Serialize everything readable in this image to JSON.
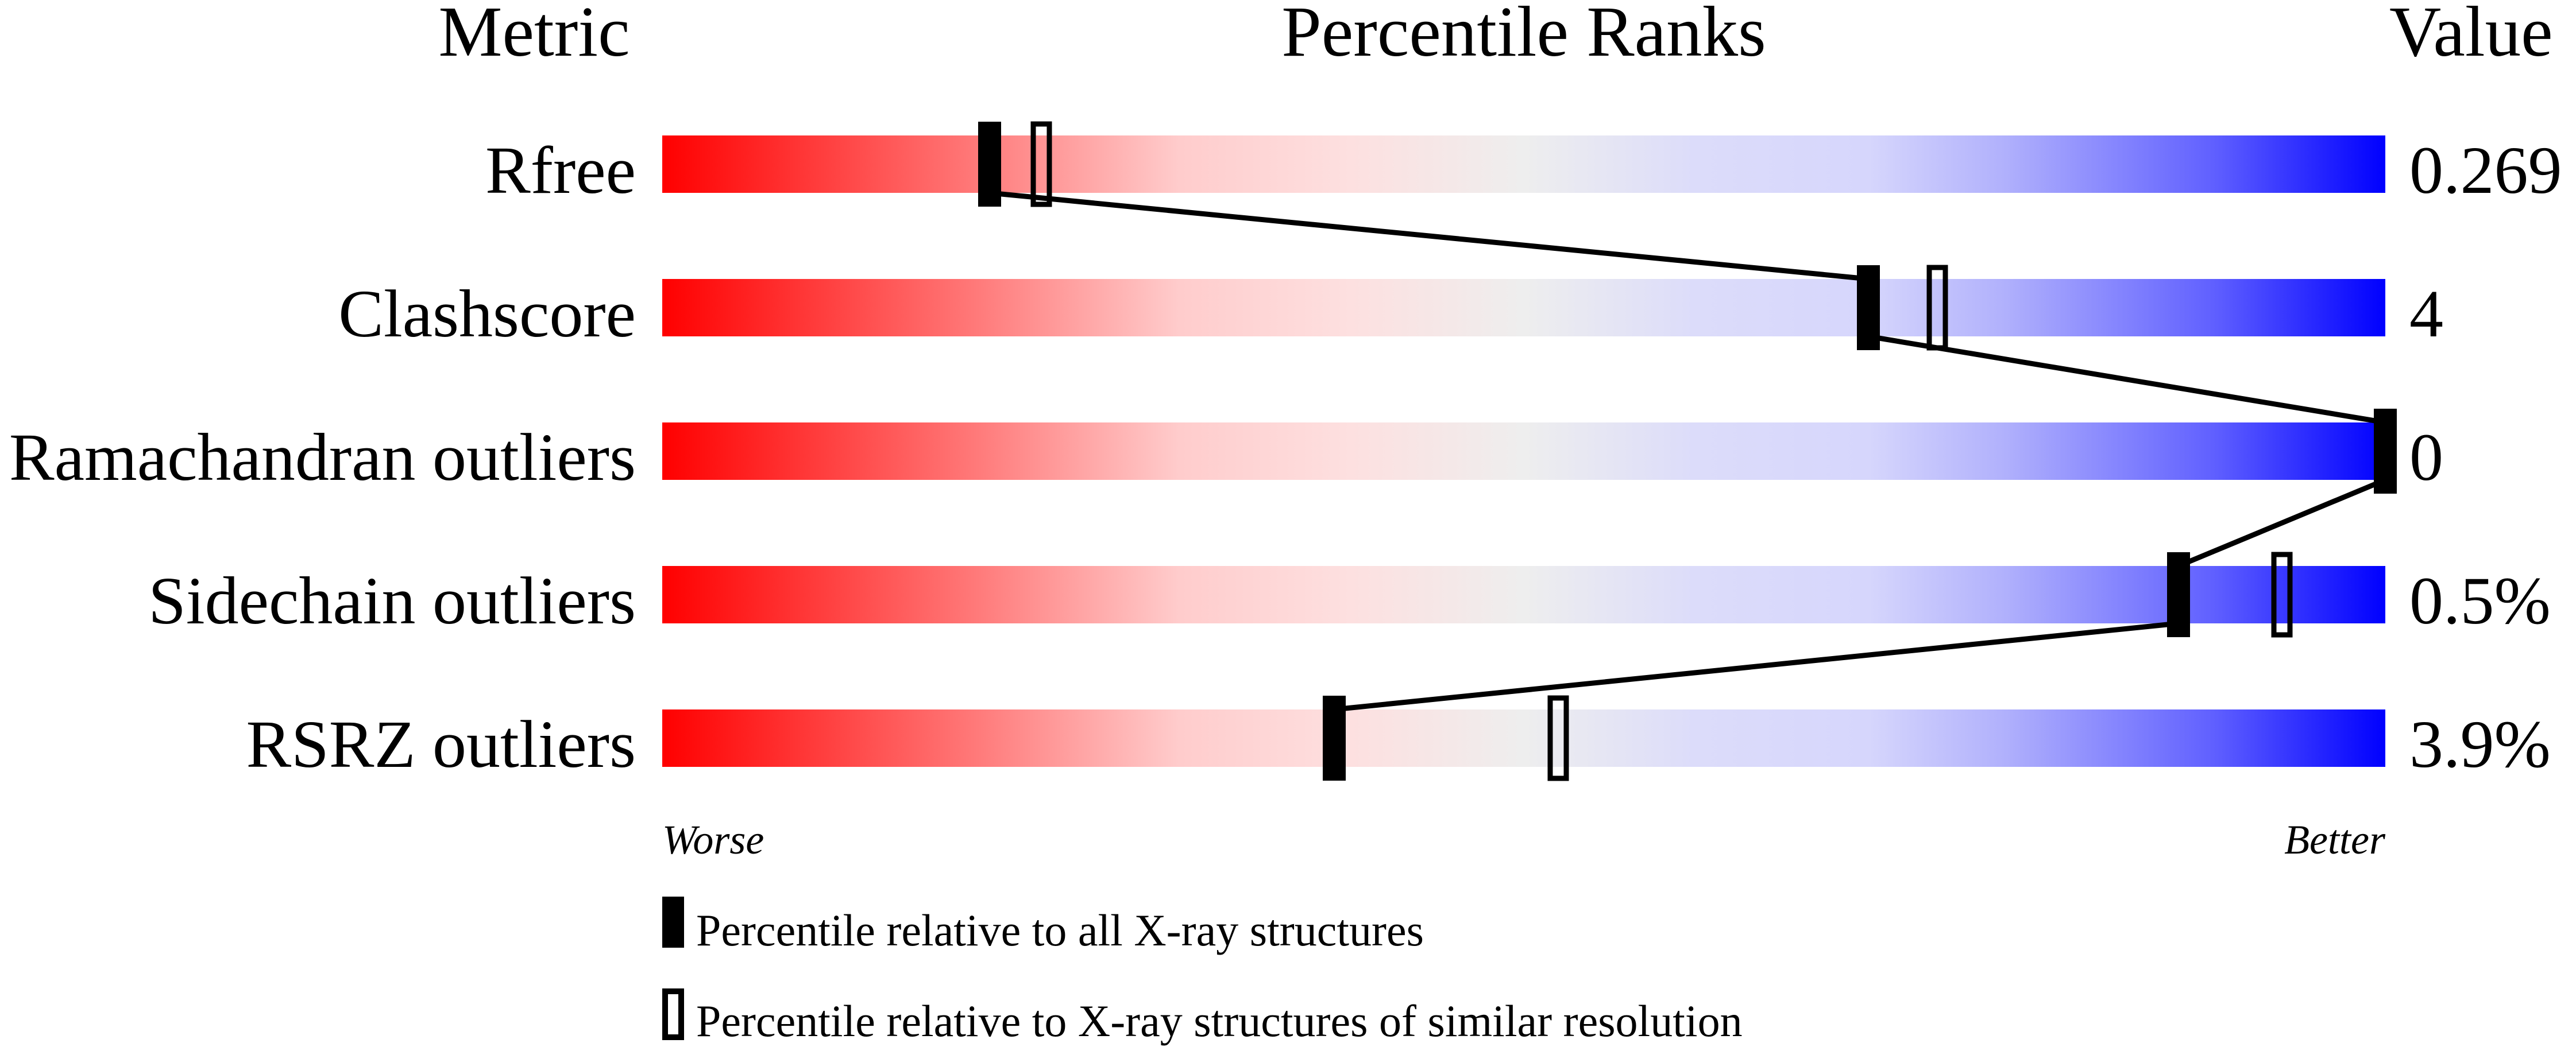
{
  "chart_data": {
    "type": "bar",
    "headers": {
      "metric": "Metric",
      "ranks": "Percentile Ranks",
      "value": "Value"
    },
    "xlim": [
      0,
      100
    ],
    "axis_labels": {
      "left": "Worse",
      "right": "Better"
    },
    "gradient_colors": [
      "#ff0000",
      "#ff7878",
      "#ffcccc",
      "#fde0e0",
      "#eeeeee",
      "#dcdcfa",
      "#d6d6fc",
      "#b0b0fc",
      "#6060ff",
      "#0000ff"
    ],
    "rows": [
      {
        "metric": "Rfree",
        "value": "0.269",
        "percentile_all": 19,
        "percentile_similar": 22
      },
      {
        "metric": "Clashscore",
        "value": "4",
        "percentile_all": 70,
        "percentile_similar": 74
      },
      {
        "metric": "Ramachandran outliers",
        "value": "0",
        "percentile_all": 100,
        "percentile_similar": 100
      },
      {
        "metric": "Sidechain outliers",
        "value": "0.5%",
        "percentile_all": 88,
        "percentile_similar": 94
      },
      {
        "metric": "RSRZ outliers",
        "value": "3.9%",
        "percentile_all": 39,
        "percentile_similar": 52
      }
    ],
    "legend": [
      {
        "marker": "filled",
        "label": "Percentile relative to all X-ray structures"
      },
      {
        "marker": "open",
        "label": "Percentile relative to X-ray structures of similar resolution"
      }
    ]
  }
}
